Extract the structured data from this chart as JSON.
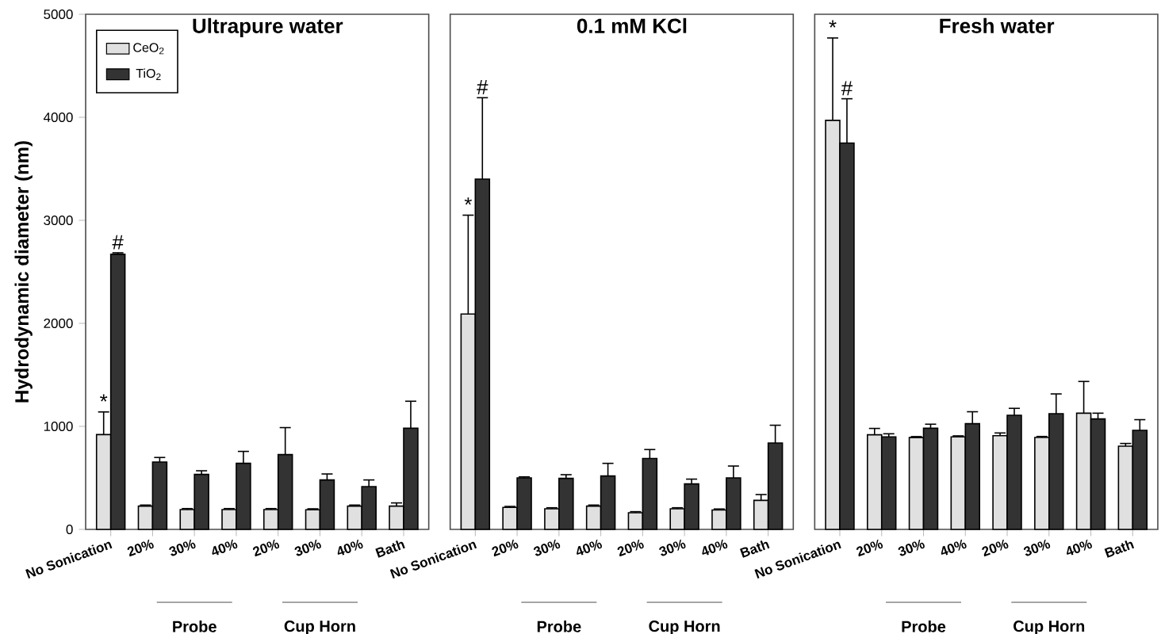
{
  "chart_data": [
    {
      "type": "bar",
      "title": "Ultrapure water",
      "ylabel": "Hydrodynamic diameter (nm)",
      "categories": [
        "No Sonication",
        "20%",
        "30%",
        "40%",
        "20%",
        "30%",
        "40%",
        "Bath"
      ],
      "series": [
        {
          "name": "CeO$_{2}$",
          "color": "#e0e0e0",
          "values": [
            920,
            226,
            192,
            192,
            192,
            190,
            226,
            226
          ],
          "errors": [
            [
              920,
              1140
            ],
            [
              226,
              236
            ],
            [
              192,
              202
            ],
            [
              192,
              202
            ],
            [
              192,
              202
            ],
            [
              190,
              200
            ],
            [
              226,
              236
            ],
            [
              226,
              257
            ]
          ]
        },
        {
          "name": "TiO$_{2}$",
          "color": "#333333",
          "values": [
            2670,
            654,
            534,
            641,
            726,
            480,
            415,
            982
          ],
          "errors": [
            [
              2670,
              2685
            ],
            [
              654,
              698
            ],
            [
              534,
              569
            ],
            [
              641,
              757
            ],
            [
              726,
              988
            ],
            [
              480,
              538
            ],
            [
              415,
              480
            ],
            [
              982,
              1244
            ]
          ]
        }
      ],
      "ylim": [
        0,
        5000
      ],
      "yticks": [
        0,
        1000,
        2000,
        3000,
        4000,
        5000
      ],
      "legend": "top left",
      "annotations": [
        "Probe",
        "Cup Horn",
        {
          "text": "*",
          "x": "No Sonication",
          "y": 1140
        },
        {
          "text": "#",
          "x": "No Sonication",
          "y": 2685
        }
      ]
    },
    {
      "type": "bar",
      "title": "0.1 mM KCl",
      "categories": [
        "No Sonication",
        "20%",
        "30%",
        "40%",
        "20%",
        "30%",
        "40%",
        "Bath"
      ],
      "series": [
        {
          "color": "#e0e0e0",
          "values": [
            2090,
            213,
            200,
            226,
            162,
            200,
            188,
            282
          ],
          "errors": [
            [
              2090,
              3050
            ],
            [
              213,
              223
            ],
            [
              200,
              210
            ],
            [
              226,
              236
            ],
            [
              162,
              172
            ],
            [
              200,
              210
            ],
            [
              188,
              198
            ],
            [
              282,
              338
            ]
          ]
        },
        {
          "color": "#333333",
          "values": [
            3400,
            500,
            495,
            518,
            688,
            441,
            500,
            838
          ],
          "errors": [
            [
              3400,
              4190
            ],
            [
              500,
              510
            ],
            [
              495,
              531
            ],
            [
              518,
              641
            ],
            [
              688,
              775
            ],
            [
              441,
              488
            ],
            [
              500,
              615
            ],
            [
              838,
              1011
            ]
          ]
        }
      ],
      "ylim": [
        0,
        5000
      ],
      "yticks": [
        0,
        1000,
        2000,
        3000,
        4000,
        5000
      ],
      "tick_labels": "x",
      "annotations": [
        "Probe",
        "Cup Horn",
        {
          "text": "*",
          "x": "No Sonication",
          "y": 3050
        },
        {
          "text": "#",
          "x": "No Sonication",
          "y": 4190
        }
      ]
    },
    {
      "type": "bar",
      "title": "Fresh water",
      "categories": [
        "No Sonication",
        "20%",
        "30%",
        "40%",
        "20%",
        "30%",
        "40%",
        "Bath"
      ],
      "series": [
        {
          "color": "#e0e0e0",
          "values": [
            3970,
            918,
            891,
            898,
            910,
            892,
            1128,
            808
          ],
          "errors": [
            [
              3970,
              4770
            ],
            [
              918,
              980
            ],
            [
              891,
              901
            ],
            [
              898,
              908
            ],
            [
              910,
              936
            ],
            [
              892,
              902
            ],
            [
              1128,
              1436
            ],
            [
              808,
              834
            ]
          ]
        },
        {
          "color": "#333333",
          "values": [
            3750,
            898,
            982,
            1026,
            1108,
            1123,
            1072,
            962
          ],
          "errors": [
            [
              3750,
              4180
            ],
            [
              898,
              928
            ],
            [
              982,
              1021
            ],
            [
              1026,
              1142
            ],
            [
              1108,
              1175
            ],
            [
              1123,
              1315
            ],
            [
              1072,
              1128
            ],
            [
              962,
              1065
            ]
          ]
        }
      ],
      "ylim": [
        0,
        5000
      ],
      "yticks": [
        0,
        1000,
        2000,
        3000,
        4000,
        5000
      ],
      "tick_labels": "x",
      "annotations": [
        "Probe",
        "Cup Horn",
        {
          "text": "*",
          "x": "No Sonication",
          "y": 4770
        },
        {
          "text": "#",
          "x": "No Sonication",
          "y": 4180
        }
      ]
    }
  ]
}
